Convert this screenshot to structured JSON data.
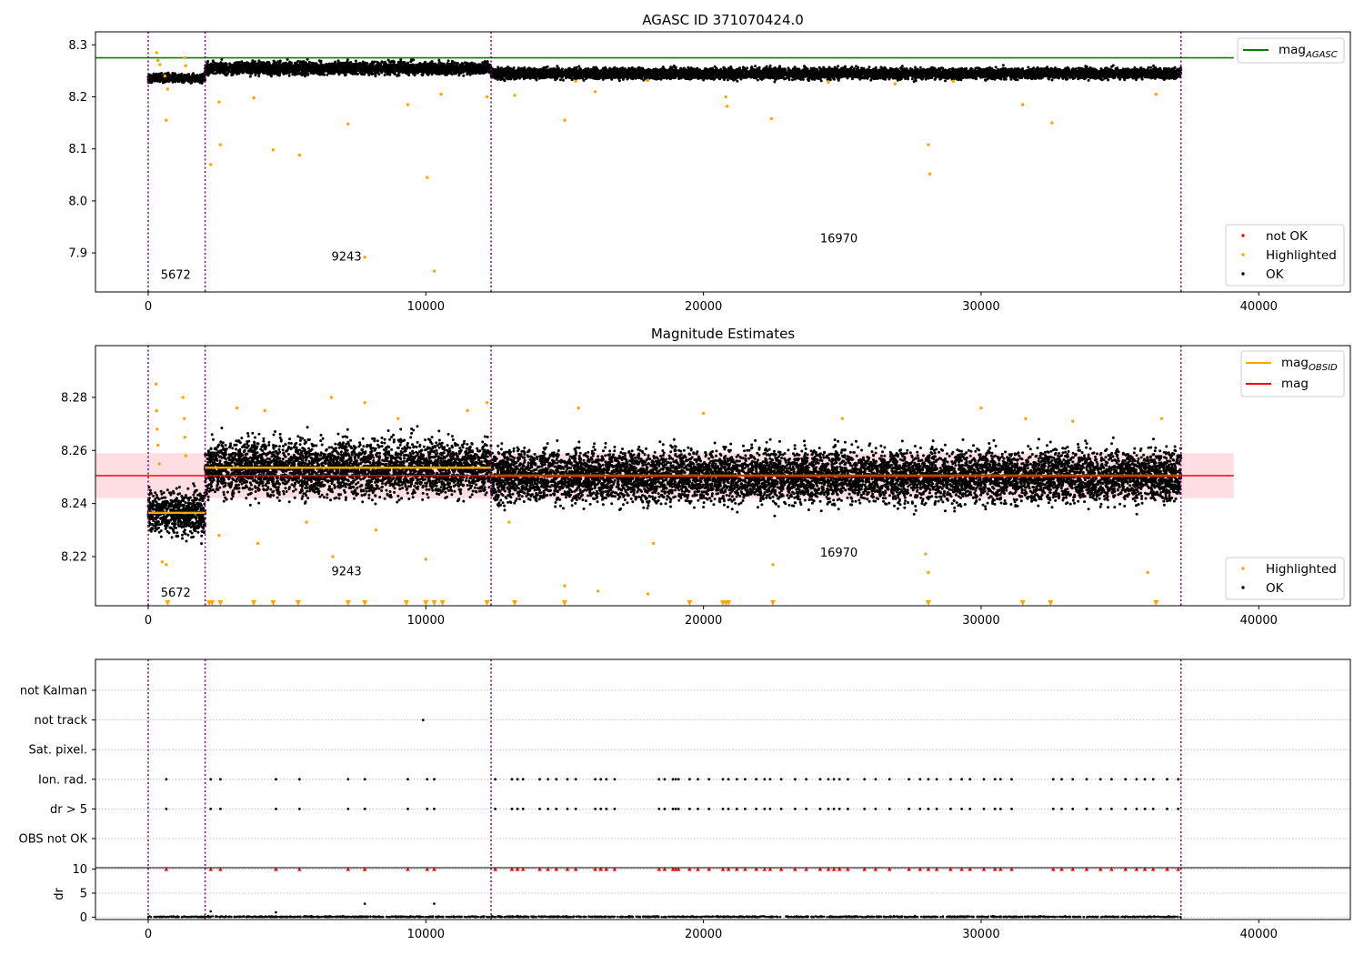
{
  "chart_data": [
    {
      "type": "scatter",
      "title": "AGASC ID 371070424.0",
      "xlim": [
        -1900,
        43300
      ],
      "ylim": [
        7.825,
        8.325
      ],
      "xticks": [
        0,
        10000,
        20000,
        30000,
        40000
      ],
      "yticks": [
        7.9,
        8.0,
        8.1,
        8.2,
        8.3
      ],
      "grid": false,
      "obsid_boundaries": [
        0,
        2050,
        12350,
        37200
      ],
      "obsid_labels": [
        {
          "text": "5672",
          "x": 450,
          "y": 7.85
        },
        {
          "text": "9243",
          "x": 6600,
          "y": 7.885
        },
        {
          "text": "16970",
          "x": 24200,
          "y": 7.92
        }
      ],
      "reference_line": {
        "name": "mag_AGASC",
        "value": 8.275,
        "color": "#008000",
        "x_range": [
          -1900,
          39100
        ]
      },
      "series": [
        {
          "name": "OK",
          "color": "#000000",
          "segments": [
            {
              "x": [
                0,
                2050
              ],
              "center": 8.236,
              "spread": 0.012
            },
            {
              "x": [
                2050,
                12350
              ],
              "center": 8.255,
              "spread": 0.018
            },
            {
              "x": [
                12350,
                37200
              ],
              "center": 8.245,
              "spread": 0.016
            }
          ]
        },
        {
          "name": "Highlighted",
          "color": "#FFA500",
          "points": [
            [
              300,
              8.285
            ],
            [
              350,
              8.27
            ],
            [
              420,
              8.262
            ],
            [
              600,
              8.24
            ],
            [
              700,
              8.215
            ],
            [
              650,
              8.155
            ],
            [
              1300,
              8.275
            ],
            [
              1350,
              8.26
            ],
            [
              2250,
              8.07
            ],
            [
              2550,
              8.19
            ],
            [
              2600,
              8.108
            ],
            [
              3800,
              8.198
            ],
            [
              4500,
              8.098
            ],
            [
              5450,
              8.088
            ],
            [
              7200,
              8.148
            ],
            [
              7800,
              7.892
            ],
            [
              9350,
              8.185
            ],
            [
              10050,
              8.045
            ],
            [
              10300,
              7.865
            ],
            [
              10550,
              8.205
            ],
            [
              12200,
              8.2
            ],
            [
              13200,
              8.203
            ],
            [
              15000,
              8.155
            ],
            [
              15400,
              8.23
            ],
            [
              16100,
              8.21
            ],
            [
              20800,
              8.2
            ],
            [
              20850,
              8.182
            ],
            [
              22450,
              8.158
            ],
            [
              28100,
              8.108
            ],
            [
              28150,
              8.052
            ],
            [
              31500,
              8.185
            ],
            [
              32550,
              8.15
            ],
            [
              36300,
              8.205
            ],
            [
              18000,
              8.232
            ],
            [
              24500,
              8.228
            ],
            [
              26900,
              8.225
            ],
            [
              29000,
              8.23
            ]
          ]
        },
        {
          "name": "not OK",
          "color": "#FF0000",
          "points": []
        }
      ],
      "legends": [
        {
          "placement": "upper right",
          "entries": [
            {
              "label": "mag",
              "sub": "AGASC",
              "kind": "line",
              "color": "#008000"
            }
          ]
        },
        {
          "placement": "lower right",
          "entries": [
            {
              "label": "not OK",
              "kind": "dot",
              "color": "#FF0000"
            },
            {
              "label": "Highlighted",
              "kind": "dot",
              "color": "#FFA500"
            },
            {
              "label": "OK",
              "kind": "dot",
              "color": "#000000"
            }
          ]
        }
      ]
    },
    {
      "type": "scatter",
      "title": "Magnitude Estimates",
      "xlim": [
        -1900,
        43300
      ],
      "ylim": [
        8.2015,
        8.2995
      ],
      "xticks": [
        0,
        10000,
        20000,
        30000,
        40000
      ],
      "yticks": [
        8.22,
        8.24,
        8.26,
        8.28
      ],
      "grid": false,
      "obsid_boundaries": [
        0,
        2050,
        12350,
        37200
      ],
      "obsid_labels": [
        {
          "text": "5672",
          "x": 450,
          "y": 8.205
        },
        {
          "text": "9243",
          "x": 6600,
          "y": 8.213
        },
        {
          "text": "16970",
          "x": 24200,
          "y": 8.22
        }
      ],
      "mag_band": {
        "center": 8.2505,
        "half_width": 0.0085,
        "color": "#FFB6C1",
        "x_range": [
          -1900,
          39100
        ]
      },
      "mag_line": {
        "name": "mag",
        "value": 8.2505,
        "color": "#FF0000",
        "x_range": [
          -1900,
          39100
        ]
      },
      "obsid_mag_lines": [
        {
          "x": [
            0,
            2050
          ],
          "value": 8.2365
        },
        {
          "x": [
            2050,
            12350
          ],
          "value": 8.2535
        },
        {
          "x": [
            12350,
            37200
          ],
          "value": 8.2505
        }
      ],
      "series": [
        {
          "name": "OK",
          "color": "#000000",
          "segments": [
            {
              "x": [
                0,
                2050
              ],
              "center": 8.2365,
              "spread": 0.012
            },
            {
              "x": [
                2050,
                12350
              ],
              "center": 8.2535,
              "spread": 0.016
            },
            {
              "x": [
                12350,
                37200
              ],
              "center": 8.2505,
              "spread": 0.015
            }
          ]
        },
        {
          "name": "Highlighted",
          "color": "#FFA500",
          "points": [
            [
              280,
              8.285
            ],
            [
              300,
              8.275
            ],
            [
              320,
              8.268
            ],
            [
              350,
              8.262
            ],
            [
              400,
              8.255
            ],
            [
              500,
              8.218
            ],
            [
              650,
              8.217
            ],
            [
              1250,
              8.28
            ],
            [
              1300,
              8.272
            ],
            [
              1320,
              8.265
            ],
            [
              1350,
              8.258
            ],
            [
              2550,
              8.228
            ],
            [
              3200,
              8.276
            ],
            [
              3950,
              8.225
            ],
            [
              4200,
              8.275
            ],
            [
              5700,
              8.233
            ],
            [
              6600,
              8.28
            ],
            [
              6650,
              8.22
            ],
            [
              7800,
              8.278
            ],
            [
              8200,
              8.23
            ],
            [
              9000,
              8.272
            ],
            [
              10000,
              8.219
            ],
            [
              11500,
              8.275
            ],
            [
              12200,
              8.278
            ],
            [
              13000,
              8.233
            ],
            [
              15000,
              8.209
            ],
            [
              15500,
              8.276
            ],
            [
              16200,
              8.207
            ],
            [
              18000,
              8.206
            ],
            [
              18200,
              8.225
            ],
            [
              20000,
              8.274
            ],
            [
              22500,
              8.217
            ],
            [
              25000,
              8.272
            ],
            [
              28000,
              8.221
            ],
            [
              28100,
              8.214
            ],
            [
              30000,
              8.276
            ],
            [
              31600,
              8.272
            ],
            [
              33300,
              8.271
            ],
            [
              36000,
              8.214
            ],
            [
              36500,
              8.272
            ]
          ]
        },
        {
          "name": "Highlighted (below axis)",
          "color": "#FFA500",
          "x_values": [
            700,
            2200,
            2300,
            2600,
            3800,
            4500,
            5400,
            7200,
            7800,
            9300,
            10000,
            10300,
            10600,
            12200,
            13200,
            15000,
            19500,
            20700,
            20800,
            20900,
            22500,
            28100,
            31500,
            32500,
            36300
          ]
        }
      ],
      "legends": [
        {
          "placement": "upper right",
          "entries": [
            {
              "label": "mag",
              "sub": "OBSID",
              "kind": "line",
              "color": "#FFA500"
            },
            {
              "label": "mag",
              "kind": "line",
              "color": "#FF0000"
            }
          ]
        },
        {
          "placement": "lower right",
          "entries": [
            {
              "label": "Highlighted",
              "kind": "dot",
              "color": "#FFA500"
            },
            {
              "label": "OK",
              "kind": "dot",
              "color": "#000000"
            }
          ]
        }
      ]
    },
    {
      "type": "scatter",
      "title": "",
      "xlim": [
        -1900,
        43300
      ],
      "xticks": [
        0,
        10000,
        20000,
        30000,
        40000
      ],
      "obsid_boundaries": [
        0,
        2050,
        12350,
        37200
      ],
      "flag_rows": [
        "not Kalman",
        "not track",
        "Sat. pixel.",
        "Ion. rad.",
        "dr > 5",
        "OBS not OK"
      ],
      "flag_points": {
        "not track": [
          9900
        ],
        "Ion. rad.": [
          650,
          2250,
          2600,
          4600,
          5450,
          7200,
          7800,
          9350,
          10050,
          10300,
          12500,
          13100,
          13300,
          13500,
          14100,
          14400,
          14700,
          15100,
          15400,
          16100,
          16300,
          16500,
          16800,
          18400,
          18600,
          18900,
          19000,
          19100,
          19500,
          19800,
          20200,
          20700,
          20900,
          21200,
          21500,
          21900,
          22200,
          22400,
          22800,
          23300,
          23700,
          24200,
          24500,
          24700,
          24900,
          25200,
          25800,
          26200,
          26700,
          27400,
          27800,
          28100,
          28400,
          28900,
          29300,
          29600,
          30100,
          30500,
          30700,
          31100,
          32600,
          32900,
          33300,
          33800,
          34300,
          34700,
          35200,
          35600,
          35900,
          36200,
          36700,
          37100
        ],
        "dr > 5": [
          650,
          2250,
          2600,
          4600,
          5450,
          7200,
          7800,
          9350,
          10050,
          10300,
          12500,
          13100,
          13300,
          13500,
          14100,
          14400,
          14700,
          15100,
          15400,
          16100,
          16300,
          16500,
          16800,
          18400,
          18600,
          18900,
          19000,
          19100,
          19500,
          19800,
          20200,
          20700,
          20900,
          21200,
          21500,
          21900,
          22200,
          22400,
          22800,
          23300,
          23700,
          24200,
          24500,
          24700,
          24900,
          25200,
          25800,
          26200,
          26700,
          27400,
          27800,
          28100,
          28400,
          28900,
          29300,
          29600,
          30100,
          30500,
          30700,
          31100,
          32600,
          32900,
          33300,
          33800,
          34300,
          34700,
          35200,
          35600,
          35900,
          36200,
          36700,
          37100
        ]
      },
      "dr_axis": {
        "ylabel": "dr",
        "ylim": [
          -0.5,
          10.3
        ],
        "yticks": [
          0,
          5,
          10
        ],
        "clip_value": 10
      },
      "dr_outliers": [
        [
          2250,
          1.2
        ],
        [
          7800,
          2.8
        ],
        [
          10300,
          2.8
        ],
        [
          4600,
          1.0
        ]
      ]
    }
  ]
}
